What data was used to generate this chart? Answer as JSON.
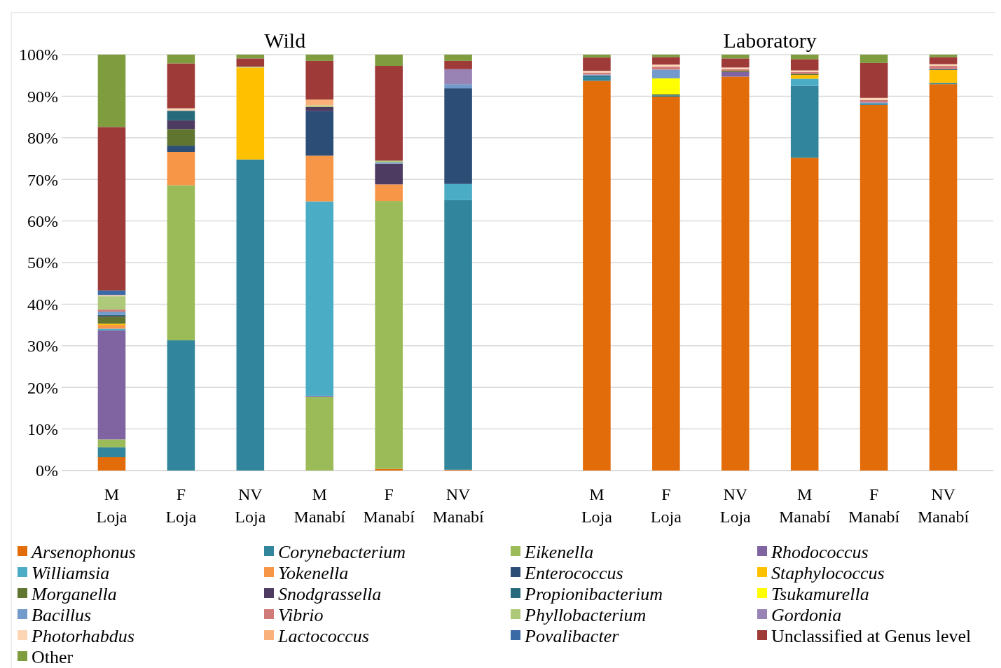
{
  "chart_data": {
    "type": "bar",
    "stacked": true,
    "categories": [
      "M\nLoja",
      "F\nLoja",
      "NV\nLoja",
      "M\nManabí",
      "F\nManabí",
      "NV\nManabí",
      null,
      "M\nLoja",
      "F\nLoja",
      "NV\nLoja",
      "M\nManabí",
      "F\nManabí",
      "NV\nManabí"
    ],
    "annotations": [
      "Wild",
      "Laboratory"
    ],
    "ylim": [
      0,
      100
    ],
    "yticks": [
      {
        "value": 0,
        "label": "0%"
      },
      {
        "value": 10,
        "label": "10%"
      },
      {
        "value": 20,
        "label": "20%"
      },
      {
        "value": 30,
        "label": "30%"
      },
      {
        "value": 40,
        "label": "40%"
      },
      {
        "value": 50,
        "label": "50%"
      },
      {
        "value": 60,
        "label": "60%"
      },
      {
        "value": 70,
        "label": "70%"
      },
      {
        "value": 80,
        "label": "80%"
      },
      {
        "value": 90,
        "label": "90%"
      },
      {
        "value": 100,
        "label": "100%"
      }
    ],
    "grid": "y",
    "legend": "bottom",
    "series": [
      {
        "name": "Arsenophonus",
        "color": "#e36c0a",
        "values": [
          3.2,
          0,
          0,
          0,
          0.4,
          0.2,
          null,
          93.7,
          89.9,
          94.7,
          75.2,
          87.9,
          92.9
        ]
      },
      {
        "name": "Corynebacterium",
        "color": "#31859c",
        "values": [
          2.4,
          31.3,
          74.8,
          0,
          0,
          64.8,
          null,
          0.9,
          0.3,
          0,
          17.3,
          0.3,
          0.3
        ]
      },
      {
        "name": "Eikenella",
        "color": "#9bbb59",
        "values": [
          1.9,
          37.3,
          0,
          17.7,
          64.4,
          0,
          null,
          0,
          0,
          0,
          0,
          0,
          0
        ]
      },
      {
        "name": "Rhodococcus",
        "color": "#8064a2",
        "values": [
          26.2,
          0,
          0,
          0.2,
          0,
          0,
          null,
          0,
          0,
          1.1,
          0,
          0,
          0
        ]
      },
      {
        "name": "Williamsia",
        "color": "#4bacc6",
        "values": [
          0.4,
          0,
          0,
          46.8,
          0,
          3.9,
          null,
          0,
          0,
          0,
          1.7,
          0,
          0
        ]
      },
      {
        "name": "Yokenella",
        "color": "#f79646",
        "values": [
          0.9,
          8.0,
          0,
          11.0,
          4.0,
          0,
          null,
          0,
          0,
          0,
          0,
          0,
          0
        ]
      },
      {
        "name": "Enterococcus",
        "color": "#2c4d75",
        "values": [
          0,
          1.5,
          0,
          10.7,
          0,
          23.0,
          null,
          0,
          0,
          0,
          0,
          0,
          0
        ]
      },
      {
        "name": "Staphylococcus",
        "color": "#ffc000",
        "values": [
          0.3,
          0,
          22.1,
          0,
          0,
          0,
          null,
          0,
          0,
          0,
          0.9,
          0,
          3.1
        ]
      },
      {
        "name": "Morganella",
        "color": "#5f7530",
        "values": [
          1.7,
          4.0,
          0,
          0,
          0,
          0,
          null,
          0,
          0.3,
          0.3,
          0.3,
          0,
          0
        ]
      },
      {
        "name": "Snodgrassella",
        "color": "#4d3b62",
        "values": [
          0.2,
          2.1,
          0,
          1.0,
          5.0,
          0,
          null,
          0,
          0,
          0,
          0,
          0,
          0
        ]
      },
      {
        "name": "Propionibacterium",
        "color": "#276a7c",
        "values": [
          0.2,
          2.3,
          0,
          0,
          0,
          0,
          null,
          0.3,
          0,
          0,
          0,
          0,
          0.2
        ]
      },
      {
        "name": "Tsukamurella",
        "color": "#ffff00",
        "values": [
          0,
          0,
          0,
          0,
          0,
          0,
          null,
          0,
          3.8,
          0,
          0,
          0,
          0
        ]
      },
      {
        "name": "Bacillus",
        "color": "#729aca",
        "values": [
          0.8,
          0,
          0,
          0,
          0.3,
          1.0,
          null,
          0.3,
          2.1,
          0,
          0,
          0.3,
          0
        ]
      },
      {
        "name": "Vibrio",
        "color": "#d07a7a",
        "values": [
          0.5,
          0,
          0,
          0,
          0,
          0,
          null,
          0.5,
          0.7,
          0.4,
          0.4,
          0.6,
          0.8
        ]
      },
      {
        "name": "Phyllobacterium",
        "color": "#afc97a",
        "values": [
          3.2,
          0,
          0.2,
          0.4,
          0.4,
          0,
          null,
          0,
          0,
          0,
          0,
          0,
          0
        ]
      },
      {
        "name": "Gordonia",
        "color": "#9983b5",
        "values": [
          0,
          0,
          0,
          0,
          0,
          3.6,
          null,
          0,
          0,
          0,
          0,
          0,
          0
        ]
      },
      {
        "name": "Photorhabdus",
        "color": "#fcd5b5",
        "values": [
          0.3,
          0.6,
          0,
          0,
          0,
          0,
          null,
          0.4,
          0.5,
          0.4,
          0.4,
          0.5,
          0.4
        ]
      },
      {
        "name": "Lactococcus",
        "color": "#fab07a",
        "values": [
          0,
          0,
          0,
          1.4,
          0,
          0,
          null,
          0,
          0,
          0,
          0,
          0,
          0
        ]
      },
      {
        "name": "Povalibacter",
        "color": "#3a6aa6",
        "values": [
          1.1,
          0,
          0,
          0,
          0,
          0,
          null,
          0,
          0,
          0,
          0,
          0,
          0
        ]
      },
      {
        "name": "Unclassified at Genus level",
        "color": "#9e3a38",
        "values": [
          39.3,
          10.8,
          2.0,
          9.3,
          22.8,
          2.0,
          null,
          3.2,
          1.8,
          2.2,
          2.7,
          8.4,
          1.7
        ]
      },
      {
        "name": "Other",
        "color": "#7f9c3f",
        "values": [
          17.4,
          2.1,
          0.9,
          1.5,
          2.7,
          1.5,
          null,
          0.7,
          0.6,
          0.9,
          1.1,
          2.0,
          0.6
        ]
      }
    ]
  }
}
